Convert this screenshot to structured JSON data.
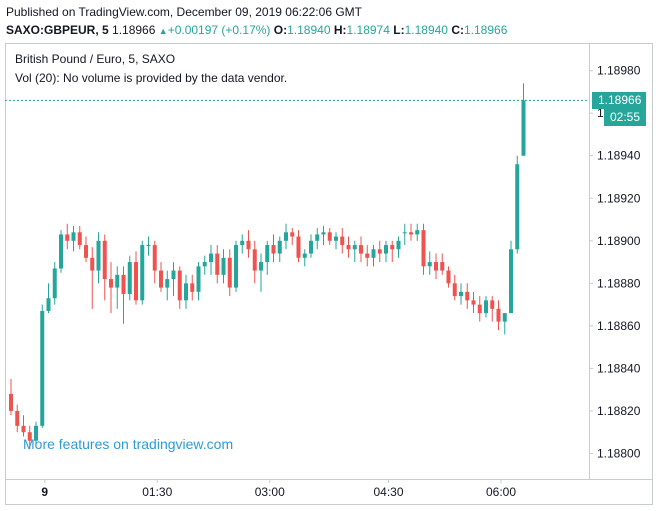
{
  "header": {
    "published": "Published on TradingView.com, December 09, 2019 06:22:06 GMT",
    "symbol": "SAXO:GBPEUR, 5",
    "last": "1.18966",
    "change": "+0.00197 (+0.17%)",
    "o_label": "O:",
    "o": "1.18940",
    "h_label": "H:",
    "h": "1.18974",
    "l_label": "L:",
    "l": "1.18940",
    "c_label": "C:",
    "c": "1.18966"
  },
  "legend": {
    "title": "British Pound / Euro, 5, SAXO",
    "volume": "Vol (20): No volume is provided by the data vendor."
  },
  "watermark": "More features on tradingview.com",
  "last_price_tag": "1.18966",
  "countdown_tag": "02:55",
  "colors": {
    "up": "#26a69a",
    "down": "#ef5350",
    "link": "#2e9bd6"
  },
  "chart_data": {
    "type": "candlestick",
    "symbol": "SAXO:GBPEUR",
    "interval": "5",
    "y_ticks": [
      "1.18980",
      "1.18960",
      "1.18940",
      "1.18920",
      "1.18900",
      "1.18880",
      "1.18860",
      "1.18840",
      "1.18820",
      "1.18800"
    ],
    "x_ticks": [
      "9",
      "01:30",
      "03:00",
      "04:30",
      "06:00"
    ],
    "ylim": [
      1.18788,
      1.18993
    ],
    "grid": false,
    "last_price_line": 1.18966,
    "candles": [
      {
        "o": 1.18828,
        "h": 1.18835,
        "l": 1.18818,
        "c": 1.1882
      },
      {
        "o": 1.1882,
        "h": 1.18823,
        "l": 1.1881,
        "c": 1.18813
      },
      {
        "o": 1.18813,
        "h": 1.18818,
        "l": 1.18808,
        "c": 1.1881
      },
      {
        "o": 1.1881,
        "h": 1.18813,
        "l": 1.18802,
        "c": 1.18806
      },
      {
        "o": 1.18806,
        "h": 1.18815,
        "l": 1.18804,
        "c": 1.18813
      },
      {
        "o": 1.18813,
        "h": 1.1887,
        "l": 1.18812,
        "c": 1.18867
      },
      {
        "o": 1.18867,
        "h": 1.1888,
        "l": 1.18866,
        "c": 1.18873
      },
      {
        "o": 1.18873,
        "h": 1.1889,
        "l": 1.1887,
        "c": 1.18887
      },
      {
        "o": 1.18887,
        "h": 1.18905,
        "l": 1.18885,
        "c": 1.18903
      },
      {
        "o": 1.18903,
        "h": 1.18908,
        "l": 1.18896,
        "c": 1.189
      },
      {
        "o": 1.189,
        "h": 1.18907,
        "l": 1.18895,
        "c": 1.18904
      },
      {
        "o": 1.18904,
        "h": 1.18907,
        "l": 1.18896,
        "c": 1.18898
      },
      {
        "o": 1.18898,
        "h": 1.18902,
        "l": 1.1889,
        "c": 1.18892
      },
      {
        "o": 1.18892,
        "h": 1.18897,
        "l": 1.18868,
        "c": 1.18886
      },
      {
        "o": 1.18886,
        "h": 1.18904,
        "l": 1.1888,
        "c": 1.189
      },
      {
        "o": 1.189,
        "h": 1.18903,
        "l": 1.18872,
        "c": 1.18882
      },
      {
        "o": 1.18882,
        "h": 1.1889,
        "l": 1.18866,
        "c": 1.18878
      },
      {
        "o": 1.18878,
        "h": 1.18888,
        "l": 1.18868,
        "c": 1.18884
      },
      {
        "o": 1.18884,
        "h": 1.18888,
        "l": 1.18861,
        "c": 1.18875
      },
      {
        "o": 1.18875,
        "h": 1.18893,
        "l": 1.18872,
        "c": 1.1889
      },
      {
        "o": 1.1889,
        "h": 1.18895,
        "l": 1.1887,
        "c": 1.18872
      },
      {
        "o": 1.18872,
        "h": 1.189,
        "l": 1.1887,
        "c": 1.18898
      },
      {
        "o": 1.18898,
        "h": 1.18902,
        "l": 1.18893,
        "c": 1.18898
      },
      {
        "o": 1.18898,
        "h": 1.189,
        "l": 1.1888,
        "c": 1.18886
      },
      {
        "o": 1.18886,
        "h": 1.1889,
        "l": 1.18876,
        "c": 1.18878
      },
      {
        "o": 1.18878,
        "h": 1.18886,
        "l": 1.18872,
        "c": 1.18882
      },
      {
        "o": 1.18882,
        "h": 1.1889,
        "l": 1.18874,
        "c": 1.18886
      },
      {
        "o": 1.18886,
        "h": 1.18888,
        "l": 1.18868,
        "c": 1.18872
      },
      {
        "o": 1.18872,
        "h": 1.18884,
        "l": 1.18868,
        "c": 1.1888
      },
      {
        "o": 1.1888,
        "h": 1.18884,
        "l": 1.18872,
        "c": 1.18876
      },
      {
        "o": 1.18876,
        "h": 1.1889,
        "l": 1.18872,
        "c": 1.18888
      },
      {
        "o": 1.18888,
        "h": 1.18893,
        "l": 1.18884,
        "c": 1.1889
      },
      {
        "o": 1.1889,
        "h": 1.18898,
        "l": 1.18884,
        "c": 1.18894
      },
      {
        "o": 1.18894,
        "h": 1.18898,
        "l": 1.1888,
        "c": 1.18884
      },
      {
        "o": 1.18884,
        "h": 1.18896,
        "l": 1.1888,
        "c": 1.18892
      },
      {
        "o": 1.18892,
        "h": 1.18896,
        "l": 1.18874,
        "c": 1.18878
      },
      {
        "o": 1.18878,
        "h": 1.189,
        "l": 1.18876,
        "c": 1.18898
      },
      {
        "o": 1.18898,
        "h": 1.18903,
        "l": 1.18894,
        "c": 1.189
      },
      {
        "o": 1.189,
        "h": 1.18905,
        "l": 1.18892,
        "c": 1.18896
      },
      {
        "o": 1.18896,
        "h": 1.189,
        "l": 1.1888,
        "c": 1.18886
      },
      {
        "o": 1.18886,
        "h": 1.18894,
        "l": 1.18876,
        "c": 1.1889
      },
      {
        "o": 1.1889,
        "h": 1.189,
        "l": 1.18884,
        "c": 1.18898
      },
      {
        "o": 1.18898,
        "h": 1.18903,
        "l": 1.1889,
        "c": 1.18894
      },
      {
        "o": 1.18894,
        "h": 1.18902,
        "l": 1.1889,
        "c": 1.189
      },
      {
        "o": 1.189,
        "h": 1.18908,
        "l": 1.18896,
        "c": 1.18904
      },
      {
        "o": 1.18904,
        "h": 1.18906,
        "l": 1.18898,
        "c": 1.18902
      },
      {
        "o": 1.18902,
        "h": 1.18905,
        "l": 1.1889,
        "c": 1.18892
      },
      {
        "o": 1.18892,
        "h": 1.18896,
        "l": 1.18888,
        "c": 1.18894
      },
      {
        "o": 1.18894,
        "h": 1.18903,
        "l": 1.18892,
        "c": 1.189
      },
      {
        "o": 1.189,
        "h": 1.18906,
        "l": 1.18896,
        "c": 1.18903
      },
      {
        "o": 1.18903,
        "h": 1.18907,
        "l": 1.18898,
        "c": 1.18904
      },
      {
        "o": 1.18904,
        "h": 1.18906,
        "l": 1.18898,
        "c": 1.189
      },
      {
        "o": 1.189,
        "h": 1.18904,
        "l": 1.18896,
        "c": 1.18902
      },
      {
        "o": 1.18902,
        "h": 1.18906,
        "l": 1.18894,
        "c": 1.18898
      },
      {
        "o": 1.18898,
        "h": 1.18902,
        "l": 1.18892,
        "c": 1.18896
      },
      {
        "o": 1.18896,
        "h": 1.189,
        "l": 1.1889,
        "c": 1.18898
      },
      {
        "o": 1.18898,
        "h": 1.18902,
        "l": 1.1889,
        "c": 1.18894
      },
      {
        "o": 1.18894,
        "h": 1.18898,
        "l": 1.18888,
        "c": 1.18892
      },
      {
        "o": 1.18892,
        "h": 1.18898,
        "l": 1.18888,
        "c": 1.18896
      },
      {
        "o": 1.18896,
        "h": 1.189,
        "l": 1.1889,
        "c": 1.18894
      },
      {
        "o": 1.18894,
        "h": 1.189,
        "l": 1.1889,
        "c": 1.18898
      },
      {
        "o": 1.18898,
        "h": 1.189,
        "l": 1.1889,
        "c": 1.18896
      },
      {
        "o": 1.18896,
        "h": 1.18902,
        "l": 1.18892,
        "c": 1.189
      },
      {
        "o": 1.18904,
        "h": 1.18908,
        "l": 1.18898,
        "c": 1.18904
      },
      {
        "o": 1.18904,
        "h": 1.18908,
        "l": 1.189,
        "c": 1.18903
      },
      {
        "o": 1.18903,
        "h": 1.18908,
        "l": 1.189,
        "c": 1.18905
      },
      {
        "o": 1.18905,
        "h": 1.18908,
        "l": 1.18884,
        "c": 1.18888
      },
      {
        "o": 1.18888,
        "h": 1.18895,
        "l": 1.18884,
        "c": 1.1889
      },
      {
        "o": 1.1889,
        "h": 1.18894,
        "l": 1.18882,
        "c": 1.18886
      },
      {
        "o": 1.1889,
        "h": 1.18894,
        "l": 1.18884,
        "c": 1.18886
      },
      {
        "o": 1.18886,
        "h": 1.18888,
        "l": 1.18878,
        "c": 1.1888
      },
      {
        "o": 1.1888,
        "h": 1.18884,
        "l": 1.18872,
        "c": 1.18874
      },
      {
        "o": 1.18874,
        "h": 1.1888,
        "l": 1.1887,
        "c": 1.18876
      },
      {
        "o": 1.18876,
        "h": 1.1888,
        "l": 1.18868,
        "c": 1.18872
      },
      {
        "o": 1.18872,
        "h": 1.18876,
        "l": 1.18866,
        "c": 1.1887
      },
      {
        "o": 1.1887,
        "h": 1.18874,
        "l": 1.18862,
        "c": 1.18866
      },
      {
        "o": 1.18866,
        "h": 1.18874,
        "l": 1.18864,
        "c": 1.18872
      },
      {
        "o": 1.18872,
        "h": 1.18874,
        "l": 1.18862,
        "c": 1.18868
      },
      {
        "o": 1.18868,
        "h": 1.18872,
        "l": 1.18858,
        "c": 1.18862
      },
      {
        "o": 1.18862,
        "h": 1.18866,
        "l": 1.18856,
        "c": 1.18866
      },
      {
        "o": 1.18866,
        "h": 1.189,
        "l": 1.18866,
        "c": 1.18896
      },
      {
        "o": 1.18896,
        "h": 1.1894,
        "l": 1.18894,
        "c": 1.18936
      },
      {
        "o": 1.1894,
        "h": 1.18974,
        "l": 1.1894,
        "c": 1.18966
      }
    ]
  }
}
